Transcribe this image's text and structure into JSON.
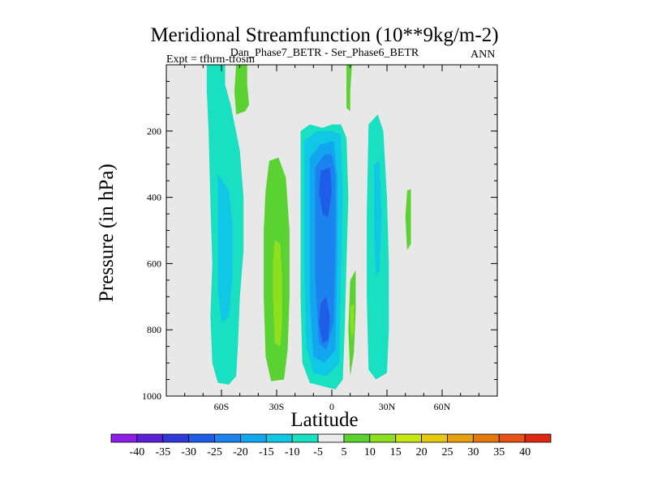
{
  "title": "Meridional Streamfunction (10**9kg/m-2)",
  "subtitle_center": "Dan_Phase7_BETR - Ser_Phase6_BETR",
  "subtitle_left": "Expt = tfhrm-tfosm",
  "subtitle_right": "ANN",
  "chart_data": {
    "type": "contour",
    "title": "Meridional Streamfunction (10**9kg/m-2)",
    "xlabel": "Latitude",
    "ylabel": "Pressure (in hPa)",
    "xlim": [
      -90,
      90
    ],
    "ylim": [
      1000,
      0
    ],
    "x_ticks": [
      -60,
      -30,
      0,
      30,
      60
    ],
    "x_tick_labels": [
      "60S",
      "30S",
      "0",
      "30N",
      "60N"
    ],
    "y_ticks": [
      200,
      400,
      600,
      800,
      1000
    ],
    "y_tick_labels": [
      "200",
      "400",
      "600",
      "800",
      "1000"
    ],
    "background_color": "#e8e8e8",
    "colorbar": {
      "levels": [
        -40,
        -35,
        -30,
        -25,
        -20,
        -15,
        -10,
        -5,
        5,
        10,
        15,
        20,
        25,
        30,
        35,
        40
      ],
      "labels": [
        "-40",
        "-35",
        "-30",
        "-25",
        "-20",
        "-15",
        "-10",
        "-5",
        "5",
        "10",
        "15",
        "20",
        "25",
        "30",
        "35",
        "40"
      ],
      "colors": [
        "#8c1ee6",
        "#5a20d8",
        "#2e3ad8",
        "#1e5ee6",
        "#1c82ee",
        "#12a6f0",
        "#10c8e6",
        "#18e0c0",
        "#ebebeb",
        "#5ad232",
        "#8ce01e",
        "#c8e612",
        "#e6c810",
        "#e6a010",
        "#e67810",
        "#e65014",
        "#e02810"
      ]
    },
    "regions": [
      {
        "label": "-5",
        "color": "#18e0c0",
        "points": [
          [
            -68,
            0
          ],
          [
            -58,
            0
          ],
          [
            -58,
            60
          ],
          [
            -55,
            120
          ],
          [
            -50,
            260
          ],
          [
            -48,
            400
          ],
          [
            -48,
            560
          ],
          [
            -50,
            700
          ],
          [
            -51,
            840
          ],
          [
            -52,
            940
          ],
          [
            -56,
            965
          ],
          [
            -62,
            960
          ],
          [
            -65,
            900
          ],
          [
            -66,
            760
          ],
          [
            -65,
            600
          ],
          [
            -66,
            420
          ],
          [
            -67,
            200
          ],
          [
            -68,
            80
          ]
        ]
      },
      {
        "label": "-10",
        "color": "#10c8e6",
        "points": [
          [
            -62,
            330
          ],
          [
            -56,
            380
          ],
          [
            -54,
            480
          ],
          [
            -54,
            640
          ],
          [
            -56,
            760
          ],
          [
            -60,
            780
          ],
          [
            -62,
            680
          ],
          [
            -62,
            520
          ]
        ]
      },
      {
        "label": "5",
        "color": "#5ad232",
        "points": [
          [
            -52,
            0
          ],
          [
            -46,
            0
          ],
          [
            -46,
            60
          ],
          [
            -45,
            120
          ],
          [
            -47,
            140
          ],
          [
            -52,
            150
          ],
          [
            -53,
            80
          ]
        ]
      },
      {
        "label": "5",
        "color": "#5ad232",
        "points": [
          [
            -34,
            290
          ],
          [
            -29,
            280
          ],
          [
            -25,
            340
          ],
          [
            -23,
            500
          ],
          [
            -23,
            700
          ],
          [
            -24,
            860
          ],
          [
            -26,
            950
          ],
          [
            -33,
            955
          ],
          [
            -36,
            880
          ],
          [
            -37,
            700
          ],
          [
            -37,
            500
          ],
          [
            -36,
            380
          ]
        ]
      },
      {
        "label": "10",
        "color": "#8ce01e",
        "points": [
          [
            -31,
            530
          ],
          [
            -28,
            540
          ],
          [
            -27,
            650
          ],
          [
            -27,
            780
          ],
          [
            -28,
            850
          ],
          [
            -31,
            840
          ],
          [
            -32,
            700
          ],
          [
            -32,
            590
          ]
        ]
      },
      {
        "label": "-5",
        "color": "#18e0c0",
        "points": [
          [
            -17,
            200
          ],
          [
            -12,
            180
          ],
          [
            -5,
            190
          ],
          [
            0,
            180
          ],
          [
            5,
            180
          ],
          [
            8,
            220
          ],
          [
            9,
            400
          ],
          [
            8,
            600
          ],
          [
            7,
            800
          ],
          [
            6,
            950
          ],
          [
            2,
            980
          ],
          [
            -5,
            970
          ],
          [
            -12,
            960
          ],
          [
            -16,
            900
          ],
          [
            -17,
            700
          ],
          [
            -17,
            450
          ]
        ]
      },
      {
        "label": "-10",
        "color": "#10c8e6",
        "points": [
          [
            -15,
            230
          ],
          [
            -8,
            200
          ],
          [
            0,
            200
          ],
          [
            5,
            210
          ],
          [
            6,
            400
          ],
          [
            5,
            650
          ],
          [
            4,
            900
          ],
          [
            -3,
            940
          ],
          [
            -10,
            930
          ],
          [
            -14,
            850
          ],
          [
            -15,
            600
          ],
          [
            -15,
            380
          ]
        ]
      },
      {
        "label": "-15",
        "color": "#12a6f0",
        "points": [
          [
            -12,
            280
          ],
          [
            -6,
            240
          ],
          [
            1,
            230
          ],
          [
            3,
            330
          ],
          [
            3,
            600
          ],
          [
            2,
            860
          ],
          [
            -4,
            900
          ],
          [
            -10,
            880
          ],
          [
            -12,
            700
          ],
          [
            -12,
            450
          ]
        ]
      },
      {
        "label": "-20",
        "color": "#1c82ee",
        "points": [
          [
            -9,
            310
          ],
          [
            -4,
            270
          ],
          [
            0,
            270
          ],
          [
            2,
            330
          ],
          [
            2,
            540
          ],
          [
            1,
            780
          ],
          [
            -3,
            860
          ],
          [
            -7,
            840
          ],
          [
            -9,
            650
          ],
          [
            -9,
            440
          ]
        ]
      },
      {
        "label": "-25",
        "color": "#1e5ee6",
        "points": [
          [
            -6,
            320
          ],
          [
            -1,
            310
          ],
          [
            0,
            380
          ],
          [
            -2,
            460
          ],
          [
            -5,
            450
          ],
          [
            -7,
            380
          ]
        ]
      },
      {
        "label": "-25",
        "color": "#1e5ee6",
        "points": [
          [
            -6,
            720
          ],
          [
            -3,
            700
          ],
          [
            -1,
            760
          ],
          [
            -2,
            830
          ],
          [
            -5,
            840
          ],
          [
            -7,
            780
          ]
        ]
      },
      {
        "label": "5",
        "color": "#5ad232",
        "points": [
          [
            8,
            0
          ],
          [
            11,
            0
          ],
          [
            10,
            80
          ],
          [
            10,
            140
          ],
          [
            8,
            130
          ]
        ]
      },
      {
        "label": "5",
        "color": "#5ad232",
        "points": [
          [
            10,
            650
          ],
          [
            13,
            620
          ],
          [
            13,
            740
          ],
          [
            12,
            870
          ],
          [
            10,
            940
          ],
          [
            9,
            800
          ]
        ]
      },
      {
        "label": "10",
        "color": "#8ce01e",
        "points": [
          [
            10,
            730
          ],
          [
            12,
            720
          ],
          [
            12,
            800
          ],
          [
            11,
            830
          ],
          [
            10,
            790
          ]
        ]
      },
      {
        "label": "-5",
        "color": "#18e0c0",
        "points": [
          [
            20,
            180
          ],
          [
            25,
            150
          ],
          [
            28,
            200
          ],
          [
            30,
            400
          ],
          [
            31,
            600
          ],
          [
            31,
            800
          ],
          [
            30,
            930
          ],
          [
            24,
            950
          ],
          [
            20,
            920
          ],
          [
            19,
            700
          ],
          [
            19,
            450
          ]
        ]
      },
      {
        "label": "-10",
        "color": "#10c8e6",
        "points": [
          [
            23,
            300
          ],
          [
            26,
            290
          ],
          [
            27,
            450
          ],
          [
            26,
            620
          ],
          [
            24,
            640
          ],
          [
            23,
            500
          ]
        ]
      },
      {
        "label": "5",
        "color": "#5ad232",
        "points": [
          [
            41,
            380
          ],
          [
            43,
            375
          ],
          [
            43,
            540
          ],
          [
            41,
            560
          ],
          [
            40,
            460
          ]
        ]
      }
    ]
  }
}
